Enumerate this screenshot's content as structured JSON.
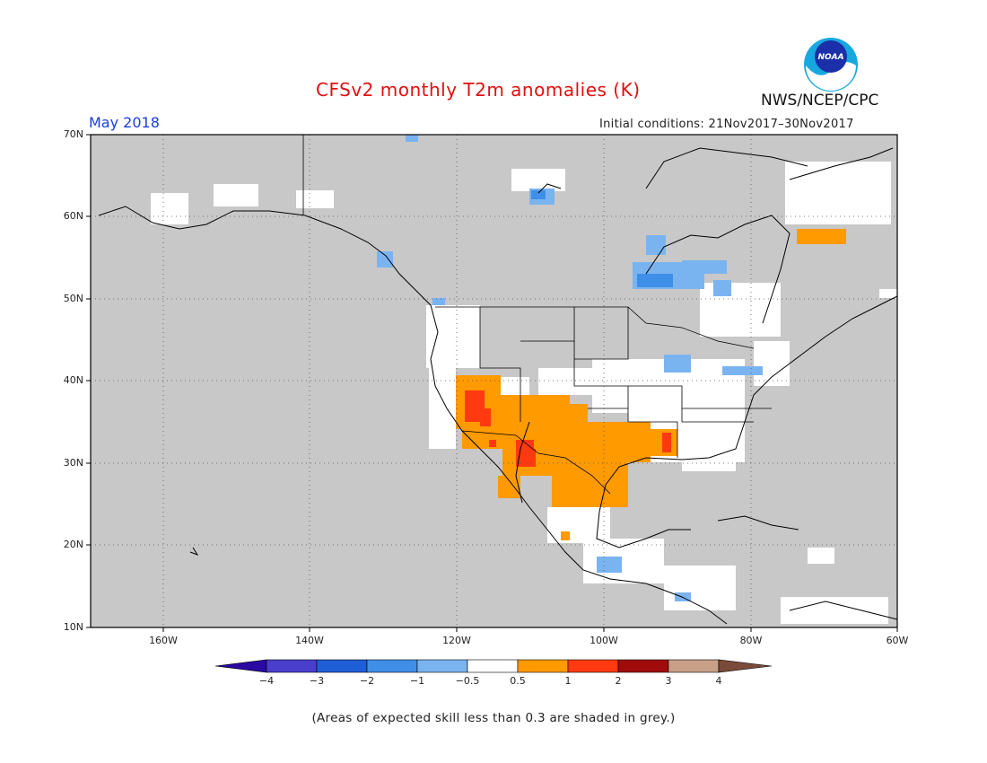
{
  "title": "CFSv2 monthly T2m anomalies (K)",
  "month": "May 2018",
  "organization": "NWS/NCEP/CPC",
  "logo_text": "NOAA",
  "initial_conditions": "Initial conditions: 21Nov2017–30Nov2017",
  "lat_labels": [
    "70N",
    "60N",
    "50N",
    "40N",
    "30N",
    "20N",
    "10N"
  ],
  "lon_labels": [
    "160W",
    "140W",
    "120W",
    "100W",
    "80W",
    "60W"
  ],
  "colorbar": {
    "labels": [
      "−4",
      "−3",
      "−2",
      "−1",
      "−0.5",
      "0.5",
      "1",
      "2",
      "3",
      "4"
    ],
    "colors": [
      "#2a0aa0",
      "#4a3ecc",
      "#1f5ed6",
      "#3f8ee8",
      "#7ab4f0",
      "#ffffff",
      "#ff9a00",
      "#ff3a10",
      "#a00c0c",
      "#c8a088",
      "#7a4a3a"
    ]
  },
  "footnote": "(Areas of expected skill less than 0.3 are shaded in grey.)",
  "colors": {
    "grey_mask": "#c8c8c8",
    "title": "#e01010",
    "month": "#1a3fe0"
  }
}
